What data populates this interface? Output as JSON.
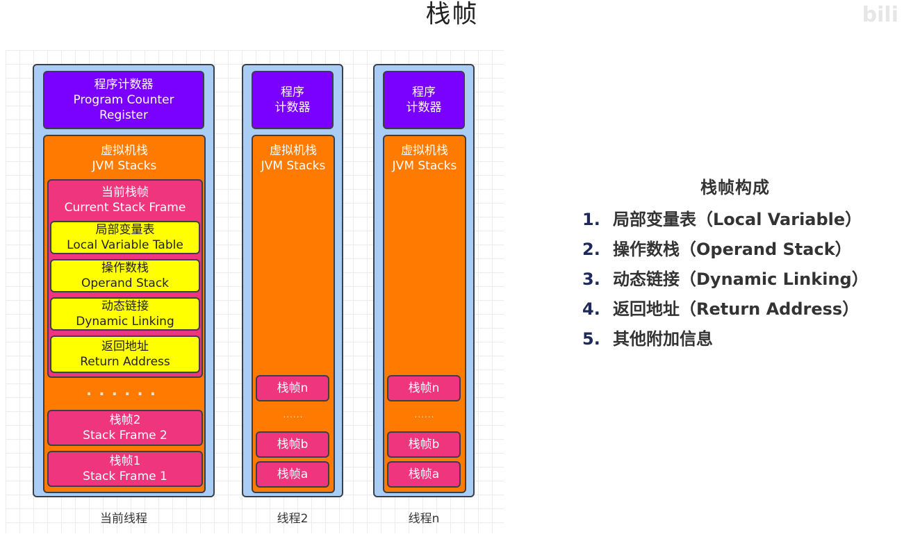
{
  "slide": {
    "title": "栈帧",
    "watermark": "bili"
  },
  "threads": [
    {
      "caption": "当前线程",
      "pc": [
        "程序计数器",
        "Program Counter",
        "Register"
      ],
      "jvm": [
        "虚拟机栈",
        "JVM Stacks"
      ],
      "current_frame": {
        "title": [
          "当前栈帧",
          "Current Stack Frame"
        ],
        "components": [
          [
            "局部变量表",
            "Local Variable Table"
          ],
          [
            "操作数栈",
            "Operand Stack"
          ],
          [
            "动态链接",
            "Dynamic Linking"
          ],
          [
            "返回地址",
            "Return Address"
          ]
        ]
      },
      "ellipsis": "......",
      "frames": [
        [
          "栈帧2",
          "Stack Frame 2"
        ],
        [
          "栈帧1",
          "Stack Frame 1"
        ]
      ]
    },
    {
      "caption": "线程2",
      "pc": [
        "程序",
        "计数器"
      ],
      "jvm": [
        "虚拟机栈",
        "JVM Stacks"
      ],
      "ellipsis": "......",
      "frames": [
        "栈帧n",
        "栈帧b",
        "栈帧a"
      ]
    },
    {
      "caption": "线程n",
      "pc": [
        "程序",
        "计数器"
      ],
      "jvm": [
        "虚拟机栈",
        "JVM Stacks"
      ],
      "ellipsis": "......",
      "frames": [
        "栈帧n",
        "栈帧b",
        "栈帧a"
      ]
    }
  ],
  "legend": {
    "title": "栈帧构成",
    "items": [
      {
        "num": "1.",
        "text": "局部变量表（Local Variable）"
      },
      {
        "num": "2.",
        "text": "操作数栈（Operand Stack）"
      },
      {
        "num": "3.",
        "text": "动态链接（Dynamic Linking）"
      },
      {
        "num": "4.",
        "text": "返回地址（Return Address）"
      },
      {
        "num": "5.",
        "text": "其他附加信息"
      }
    ]
  }
}
